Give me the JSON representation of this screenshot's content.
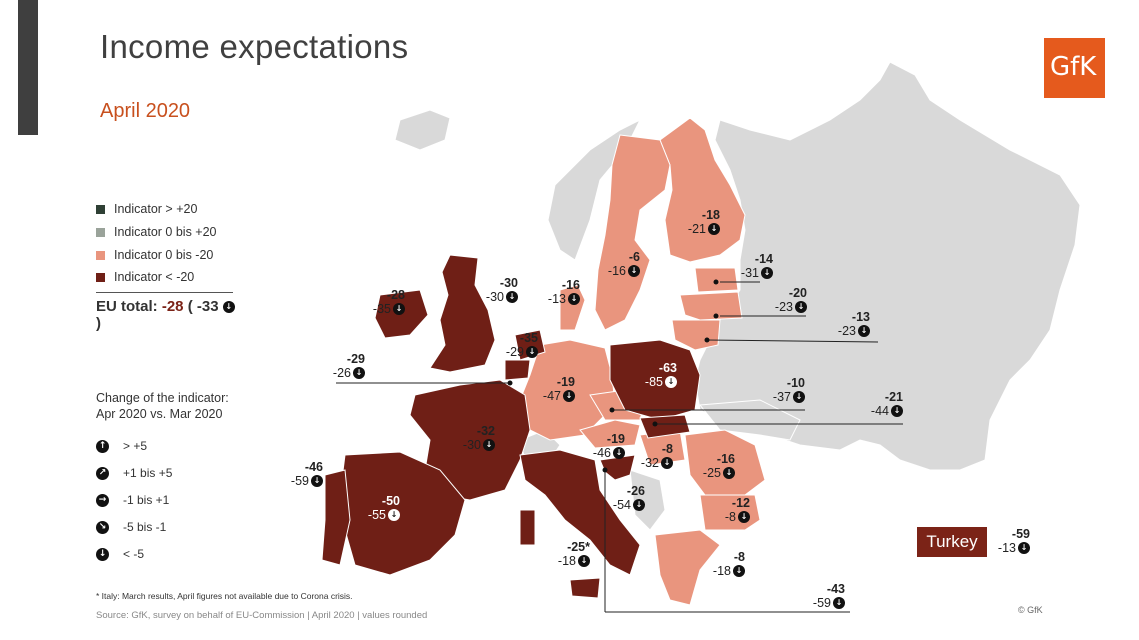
{
  "title": "Income expectations",
  "subtitle": "April 2020",
  "logo_text": "GfK",
  "colors": {
    "high_positive": "#2f4035",
    "low_positive": "#9aa39a",
    "low_negative": "#e9957e",
    "high_negative": "#6f1f16",
    "no_data": "#d9d9d9",
    "accent": "#c8501e",
    "logo_bg": "#e55a1d"
  },
  "legend": [
    {
      "label": "Indicator > +20",
      "color": "#2f4035"
    },
    {
      "label": "Indicator 0 bis +20",
      "color": "#9aa39a"
    },
    {
      "label": "Indicator 0 bis -20",
      "color": "#e9957e"
    },
    {
      "label": "Indicator < -20",
      "color": "#6f1f16"
    }
  ],
  "eu_total": {
    "label": "EU total:",
    "value": "-28",
    "open": "(",
    "change": "-33",
    "close": ")"
  },
  "change_legend": {
    "title": "Change of the indicator: Apr 2020 vs. Mar 2020",
    "items": [
      {
        "icon": "arrow-up-icon",
        "glyph": "↑",
        "label": "> +5"
      },
      {
        "icon": "arrow-up-right-icon",
        "glyph": "↗",
        "label": "+1 bis +5"
      },
      {
        "icon": "arrow-right-icon",
        "glyph": "→",
        "label": "-1 bis +1"
      },
      {
        "icon": "arrow-down-right-icon",
        "glyph": "↘",
        "label": "-5 bis -1"
      },
      {
        "icon": "arrow-down-icon",
        "glyph": "↓",
        "label": "< -5"
      }
    ]
  },
  "countries": [
    {
      "id": "ireland",
      "value": "-28",
      "change": "-35"
    },
    {
      "id": "uk",
      "value": "-30",
      "change": "-30"
    },
    {
      "id": "denmark",
      "value": "-16",
      "change": "-13"
    },
    {
      "id": "sweden",
      "value": "-6",
      "change": "-16"
    },
    {
      "id": "finland",
      "value": "-18",
      "change": "-21"
    },
    {
      "id": "estonia",
      "value": "-14",
      "change": "-31"
    },
    {
      "id": "latvia",
      "value": "-20",
      "change": "-23"
    },
    {
      "id": "lithuania",
      "value": "-13",
      "change": "-23"
    },
    {
      "id": "netherlands",
      "value": "-35",
      "change": "-29"
    },
    {
      "id": "belgium",
      "value": "-29",
      "change": "-26"
    },
    {
      "id": "germany",
      "value": "-19",
      "change": "-47"
    },
    {
      "id": "poland",
      "value": "-63",
      "change": "-85"
    },
    {
      "id": "czechia",
      "value": "-10",
      "change": "-37"
    },
    {
      "id": "slovakia",
      "value": "-21",
      "change": "-44"
    },
    {
      "id": "france",
      "value": "-32",
      "change": "-30"
    },
    {
      "id": "austria",
      "value": "-19",
      "change": "-46"
    },
    {
      "id": "hungary",
      "value": "-8",
      "change": "-32"
    },
    {
      "id": "romania",
      "value": "-16",
      "change": "-25"
    },
    {
      "id": "portugal",
      "value": "-46",
      "change": "-59"
    },
    {
      "id": "spain",
      "value": "-50",
      "change": "-55"
    },
    {
      "id": "croatia",
      "value": "-26",
      "change": "-54"
    },
    {
      "id": "bulgaria",
      "value": "-12",
      "change": "-8"
    },
    {
      "id": "italy",
      "value": "-25*",
      "change": "-18"
    },
    {
      "id": "greece",
      "value": "-8",
      "change": "-18"
    },
    {
      "id": "cyprus",
      "value": "-43",
      "change": "-59"
    },
    {
      "id": "turkey",
      "value": "-59",
      "change": "-13"
    }
  ],
  "turkey_label": "Turkey",
  "footnote": "* Italy: March results, April figures not available due to Corona crisis.",
  "source": "Source: GfK, survey on behalf of EU-Commission | April 2020 | values rounded",
  "copyright": "© GfK"
}
